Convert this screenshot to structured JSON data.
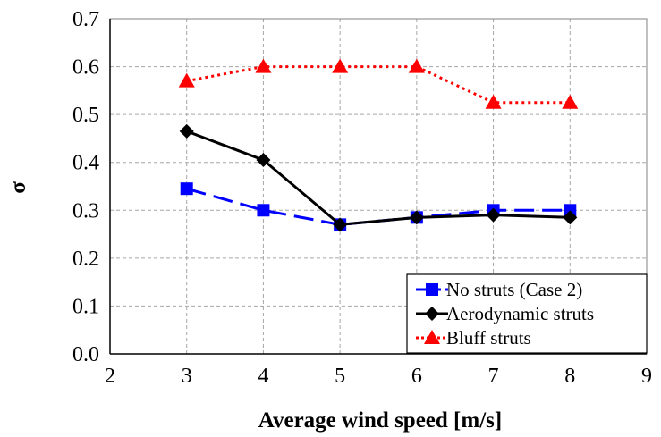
{
  "chart_data": {
    "type": "line",
    "xlabel": "Average wind speed [m/s]",
    "ylabel": "σ",
    "xlim": [
      2,
      9
    ],
    "ylim": [
      0.0,
      0.7
    ],
    "x_ticks": [
      "2",
      "3",
      "4",
      "5",
      "6",
      "7",
      "8",
      "9"
    ],
    "y_ticks": [
      "0.0",
      "0.1",
      "0.2",
      "0.3",
      "0.4",
      "0.5",
      "0.6",
      "0.7"
    ],
    "grid": true,
    "legend_position": "bottom-right",
    "series": [
      {
        "name": "No struts (Case 2)",
        "x": [
          3,
          4,
          5,
          6,
          7,
          8
        ],
        "y": [
          0.345,
          0.3,
          0.27,
          0.285,
          0.3,
          0.3
        ],
        "color": "#0000FF",
        "marker": "square",
        "dash": "long-dash"
      },
      {
        "name": "Aerodynamic struts",
        "x": [
          3,
          4,
          5,
          6,
          7,
          8
        ],
        "y": [
          0.465,
          0.405,
          0.27,
          0.285,
          0.29,
          0.285
        ],
        "color": "#000000",
        "marker": "diamond",
        "dash": "solid"
      },
      {
        "name": "Bluff struts",
        "x": [
          3,
          4,
          5,
          6,
          7,
          8
        ],
        "y": [
          0.57,
          0.6,
          0.6,
          0.6,
          0.525,
          0.525
        ],
        "color": "#FF0000",
        "marker": "triangle",
        "dash": "dotted"
      }
    ]
  }
}
